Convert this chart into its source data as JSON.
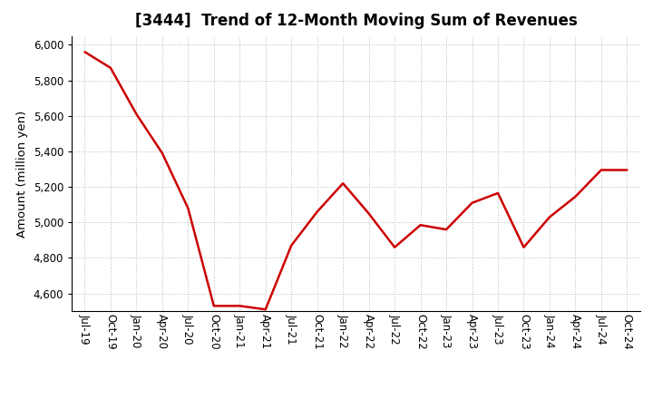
{
  "title": "[3444]  Trend of 12-Month Moving Sum of Revenues",
  "ylabel": "Amount (million yen)",
  "line_color": "#cc0000",
  "background_color": "#ffffff",
  "grid_color": "#bbbbbb",
  "x_labels": [
    "Jul-19",
    "Oct-19",
    "Jan-20",
    "Apr-20",
    "Jul-20",
    "Oct-20",
    "Jan-21",
    "Apr-21",
    "Jul-21",
    "Oct-21",
    "Jan-22",
    "Apr-22",
    "Jul-22",
    "Oct-22",
    "Jan-23",
    "Apr-23",
    "Jul-23",
    "Oct-23",
    "Jan-24",
    "Apr-24",
    "Jul-24",
    "Oct-24"
  ],
  "y_values": [
    5960,
    5870,
    5610,
    5390,
    5080,
    4530,
    4530,
    4510,
    4870,
    5060,
    5220,
    5050,
    4860,
    4985,
    4960,
    5110,
    5165,
    4860,
    5030,
    5145,
    5295,
    5295
  ],
  "ylim": [
    4500,
    6050
  ],
  "yticks": [
    4600,
    4800,
    5000,
    5200,
    5400,
    5600,
    5800,
    6000
  ],
  "title_fontsize": 12,
  "label_fontsize": 9.5,
  "tick_fontsize": 8.5
}
